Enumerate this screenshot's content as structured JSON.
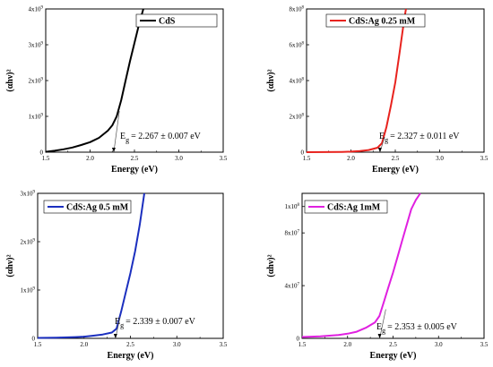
{
  "chart_data": [
    {
      "type": "line",
      "title": "",
      "xlabel": "Energy (eV)",
      "ylabel": "(αhν)²",
      "xlim": [
        1.5,
        3.5
      ],
      "ylim": [
        0,
        4000000000.0
      ],
      "xticks": [
        "1.5",
        "2.0",
        "2.5",
        "3.0",
        "3.5"
      ],
      "yticks": [
        {
          "base": "0",
          "exp": ""
        },
        {
          "base": "1x10",
          "exp": "9"
        },
        {
          "base": "2x10",
          "exp": "9"
        },
        {
          "base": "3x10",
          "exp": "9"
        },
        {
          "base": "4x10",
          "exp": "9"
        }
      ],
      "ytick_values": [
        0,
        1000000000.0,
        2000000000.0,
        3000000000.0,
        4000000000.0
      ],
      "grid": false,
      "legend": "top-right",
      "series": [
        {
          "name": "CdS",
          "color": "#000000",
          "x": [
            1.5,
            1.6,
            1.7,
            1.8,
            1.9,
            2.0,
            2.1,
            2.2,
            2.25,
            2.3,
            2.35,
            2.4,
            2.45,
            2.5,
            2.55,
            2.6
          ],
          "y": [
            10000000.0,
            40000000.0,
            80000000.0,
            130000000.0,
            200000000.0,
            280000000.0,
            400000000.0,
            600000000.0,
            750000000.0,
            1000000000.0,
            1450000000.0,
            2000000000.0,
            2550000000.0,
            3050000000.0,
            3550000000.0,
            4000000000.0
          ]
        }
      ],
      "fit": {
        "x0": 2.267,
        "x1": 2.33,
        "y1": 1150000000.0
      },
      "annotation": {
        "prefix": "E",
        "sub": "g",
        "text": "= 2.267 ± 0.007 eV"
      }
    },
    {
      "type": "line",
      "title": "",
      "xlabel": "Energy (eV)",
      "ylabel": "(αhν)²",
      "xlim": [
        1.5,
        3.5
      ],
      "ylim": [
        0,
        800000000.0
      ],
      "xticks": [
        "1.5",
        "2.0",
        "2.5",
        "3.0",
        "3.5"
      ],
      "yticks": [
        {
          "base": "0",
          "exp": ""
        },
        {
          "base": "2x10",
          "exp": "8"
        },
        {
          "base": "4x10",
          "exp": "8"
        },
        {
          "base": "6x10",
          "exp": "8"
        },
        {
          "base": "8x10",
          "exp": "8"
        }
      ],
      "ytick_values": [
        0,
        200000000.0,
        400000000.0,
        600000000.0,
        800000000.0
      ],
      "grid": false,
      "legend": "top-right",
      "series": [
        {
          "name": "CdS:Ag 0.25 mM",
          "color": "#e8231e",
          "x": [
            1.5,
            1.7,
            1.9,
            2.0,
            2.1,
            2.2,
            2.3,
            2.35,
            2.4,
            2.45,
            2.5,
            2.55,
            2.6,
            2.62
          ],
          "y": [
            100000.0,
            500000.0,
            1500000.0,
            3000000.0,
            6000000.0,
            12000000.0,
            25000000.0,
            50000000.0,
            140000000.0,
            260000000.0,
            390000000.0,
            560000000.0,
            740000000.0,
            800000000.0
          ]
        }
      ],
      "fit": {
        "x0": 2.327,
        "x1": 2.38,
        "y1": 85000000.0
      },
      "annotation": {
        "prefix": "E",
        "sub": "g",
        "text": "= 2.327 ± 0.011 eV"
      }
    },
    {
      "type": "line",
      "title": "",
      "xlabel": "Energy (eV)",
      "ylabel": "(αhν)²",
      "xlim": [
        1.5,
        3.5
      ],
      "ylim": [
        0,
        3000000000.0
      ],
      "xticks": [
        "1.5",
        "2.0",
        "2.5",
        "3.0",
        "3.5"
      ],
      "yticks": [
        {
          "base": "0",
          "exp": ""
        },
        {
          "base": "1x10",
          "exp": "9"
        },
        {
          "base": "2x10",
          "exp": "9"
        },
        {
          "base": "3x10",
          "exp": "9"
        }
      ],
      "ytick_values": [
        0,
        1000000000.0,
        2000000000.0,
        3000000000.0
      ],
      "grid": false,
      "legend": "top-left",
      "series": [
        {
          "name": "CdS:Ag 0.5 mM",
          "color": "#1b2fbf",
          "x": [
            1.5,
            1.7,
            1.9,
            2.0,
            2.1,
            2.2,
            2.3,
            2.35,
            2.4,
            2.45,
            2.5,
            2.55,
            2.6,
            2.65
          ],
          "y": [
            10000000.0,
            15000000.0,
            25000000.0,
            35000000.0,
            55000000.0,
            80000000.0,
            120000000.0,
            200000000.0,
            550000000.0,
            950000000.0,
            1350000000.0,
            1800000000.0,
            2350000000.0,
            3000000000.0
          ]
        }
      ],
      "fit": {
        "x0": 2.339,
        "x1": 2.39,
        "y1": 450000000.0
      },
      "annotation": {
        "prefix": "E",
        "sub": "g",
        "text": "= 2.339 ± 0.007 eV"
      }
    },
    {
      "type": "line",
      "title": "",
      "xlabel": "Energy (eV)",
      "ylabel": "(αhν)²",
      "xlim": [
        1.5,
        3.5
      ],
      "ylim": [
        0,
        110000000.0
      ],
      "xticks": [
        "1.5",
        "2.0",
        "2.5",
        "3.0",
        "3.5"
      ],
      "yticks": [
        {
          "base": "0",
          "exp": ""
        },
        {
          "base": "4x10",
          "exp": "7"
        },
        {
          "base": "8x10",
          "exp": "7"
        },
        {
          "base": "1x10",
          "exp": "8"
        }
      ],
      "ytick_values": [
        0,
        40000000.0,
        80000000.0,
        100000000.0
      ],
      "grid": false,
      "legend": "top-left",
      "series": [
        {
          "name": "CdS:Ag 1mM",
          "color": "#e020e0",
          "x": [
            1.5,
            1.7,
            1.9,
            2.0,
            2.1,
            2.2,
            2.3,
            2.35,
            2.4,
            2.45,
            2.5,
            2.55,
            2.6,
            2.65,
            2.7,
            2.75,
            2.8
          ],
          "y": [
            1000000.0,
            1500000.0,
            2500000.0,
            3500000.0,
            5000000.0,
            8000000.0,
            12000000.0,
            17000000.0,
            28000000.0,
            39000000.0,
            50000000.0,
            62000000.0,
            74000000.0,
            86000000.0,
            98000000.0,
            105000000.0,
            110000000.0
          ]
        }
      ],
      "fit": {
        "x0": 2.353,
        "x1": 2.42,
        "y1": 22000000.0
      },
      "annotation": {
        "prefix": "E",
        "sub": "g",
        "text": "= 2.353 ± 0.005 eV"
      }
    }
  ]
}
